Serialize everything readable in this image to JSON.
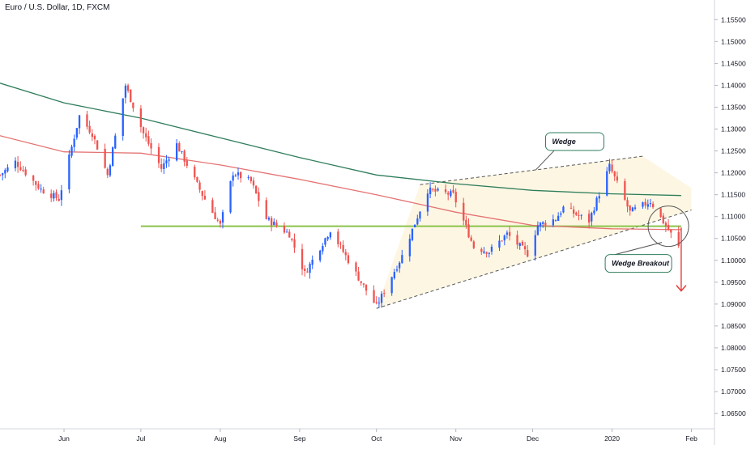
{
  "chart_title": "Euro / U.S. Dollar, 1D, FXCM",
  "colors": {
    "up": "#2962ff",
    "down": "#ef5350",
    "ma_long": "#2e7d5b",
    "ma_short": "#e57373",
    "support": "#8bc34a",
    "wedge_fill": "#fdf6e3",
    "wedge_lines": "#555555",
    "arrow": "#e53935",
    "callout_border": "#2e7d5b"
  },
  "annotations": {
    "wedge_label": "Wedge",
    "breakout_label": "Wedge Breakout"
  },
  "chart_data": {
    "type": "candlestick",
    "title": "Euro / U.S. Dollar, 1D, FXCM",
    "xlabel": "",
    "ylabel": "",
    "ylim": [
      1.0615,
      1.1595
    ],
    "y_ticks": [
      "1.15500",
      "1.15000",
      "1.14500",
      "1.14000",
      "1.13500",
      "1.13000",
      "1.12500",
      "1.12000",
      "1.11500",
      "1.11000",
      "1.10500",
      "1.10000",
      "1.09500",
      "1.09000",
      "1.08500",
      "1.08000",
      "1.07500",
      "1.07000",
      "1.06500"
    ],
    "x_ticks": [
      {
        "label": "Jun",
        "date": "2019-06-01"
      },
      {
        "label": "Jul",
        "date": "2019-07-01"
      },
      {
        "label": "Aug",
        "date": "2019-08-01"
      },
      {
        "label": "Sep",
        "date": "2019-09-01"
      },
      {
        "label": "Oct",
        "date": "2019-10-01"
      },
      {
        "label": "Nov",
        "date": "2019-11-01"
      },
      {
        "label": "Dec",
        "date": "2019-12-01"
      },
      {
        "label": "2020",
        "date": "2020-01-01"
      },
      {
        "label": "Feb",
        "date": "2020-02-01"
      }
    ],
    "x_range": [
      "2019-05-07",
      "2020-02-10"
    ],
    "pivots": [
      {
        "date": "2019-05-07",
        "close": 1.1195
      },
      {
        "date": "2019-05-13",
        "close": 1.1225
      },
      {
        "date": "2019-05-23",
        "close": 1.1162
      },
      {
        "date": "2019-05-30",
        "close": 1.114
      },
      {
        "date": "2019-06-07",
        "close": 1.133
      },
      {
        "date": "2019-06-12",
        "close": 1.129
      },
      {
        "date": "2019-06-18",
        "close": 1.1195
      },
      {
        "date": "2019-06-25",
        "close": 1.14
      },
      {
        "date": "2019-07-02",
        "close": 1.129
      },
      {
        "date": "2019-07-09",
        "close": 1.121
      },
      {
        "date": "2019-07-15",
        "close": 1.1265
      },
      {
        "date": "2019-07-25",
        "close": 1.115
      },
      {
        "date": "2019-08-01",
        "close": 1.108
      },
      {
        "date": "2019-08-06",
        "close": 1.12
      },
      {
        "date": "2019-08-13",
        "close": 1.118
      },
      {
        "date": "2019-08-19",
        "close": 1.1095
      },
      {
        "date": "2019-08-28",
        "close": 1.106
      },
      {
        "date": "2019-09-03",
        "close": 1.097
      },
      {
        "date": "2019-09-13",
        "close": 1.107
      },
      {
        "date": "2019-09-25",
        "close": 1.095
      },
      {
        "date": "2019-10-01",
        "close": 1.0895
      },
      {
        "date": "2019-10-11",
        "close": 1.101
      },
      {
        "date": "2019-10-21",
        "close": 1.116
      },
      {
        "date": "2019-10-31",
        "close": 1.115
      },
      {
        "date": "2019-11-08",
        "close": 1.103
      },
      {
        "date": "2019-11-14",
        "close": 1.102
      },
      {
        "date": "2019-11-21",
        "close": 1.106
      },
      {
        "date": "2019-11-29",
        "close": 1.1015
      },
      {
        "date": "2019-12-03",
        "close": 1.108
      },
      {
        "date": "2019-12-10",
        "close": 1.1095
      },
      {
        "date": "2019-12-13",
        "close": 1.112
      },
      {
        "date": "2019-12-23",
        "close": 1.109
      },
      {
        "date": "2019-12-31",
        "close": 1.1215
      },
      {
        "date": "2020-01-08",
        "close": 1.111
      },
      {
        "date": "2020-01-16",
        "close": 1.1135
      },
      {
        "date": "2020-01-24",
        "close": 1.106
      },
      {
        "date": "2020-01-27",
        "close": 1.103
      }
    ],
    "ma_long": [
      {
        "date": "2019-05-07",
        "value": 1.1405
      },
      {
        "date": "2019-06-01",
        "value": 1.136
      },
      {
        "date": "2019-07-01",
        "value": 1.1325
      },
      {
        "date": "2019-08-01",
        "value": 1.128
      },
      {
        "date": "2019-09-01",
        "value": 1.1235
      },
      {
        "date": "2019-10-01",
        "value": 1.1195
      },
      {
        "date": "2019-11-01",
        "value": 1.1175
      },
      {
        "date": "2019-12-01",
        "value": 1.116
      },
      {
        "date": "2020-01-01",
        "value": 1.1152
      },
      {
        "date": "2020-01-28",
        "value": 1.1148
      }
    ],
    "ma_short": [
      {
        "date": "2019-05-07",
        "value": 1.1285
      },
      {
        "date": "2019-06-01",
        "value": 1.1248
      },
      {
        "date": "2019-07-01",
        "value": 1.1245
      },
      {
        "date": "2019-08-01",
        "value": 1.1218
      },
      {
        "date": "2019-09-01",
        "value": 1.1185
      },
      {
        "date": "2019-10-01",
        "value": 1.115
      },
      {
        "date": "2019-11-01",
        "value": 1.111
      },
      {
        "date": "2019-12-01",
        "value": 1.108
      },
      {
        "date": "2020-01-01",
        "value": 1.1072
      },
      {
        "date": "2020-01-28",
        "value": 1.107
      }
    ],
    "support_line": {
      "value": 1.1078,
      "from": "2019-07-01",
      "to": "2020-01-28"
    },
    "wedge_upper": {
      "from": {
        "date": "2019-10-18",
        "value": 1.1173
      },
      "to": {
        "date": "2020-01-13",
        "value": 1.1238
      }
    },
    "wedge_lower": {
      "from": {
        "date": "2019-10-01",
        "value": 1.089
      },
      "to": {
        "date": "2020-02-01",
        "value": 1.1115
      }
    },
    "wedge_apex": {
      "date": "2020-02-01",
      "value": 1.1165
    },
    "breakout_circle": {
      "date": "2020-01-23",
      "value": 1.1078
    },
    "arrow": {
      "date": "2020-01-28",
      "from": 1.1075,
      "to": 1.093
    }
  }
}
